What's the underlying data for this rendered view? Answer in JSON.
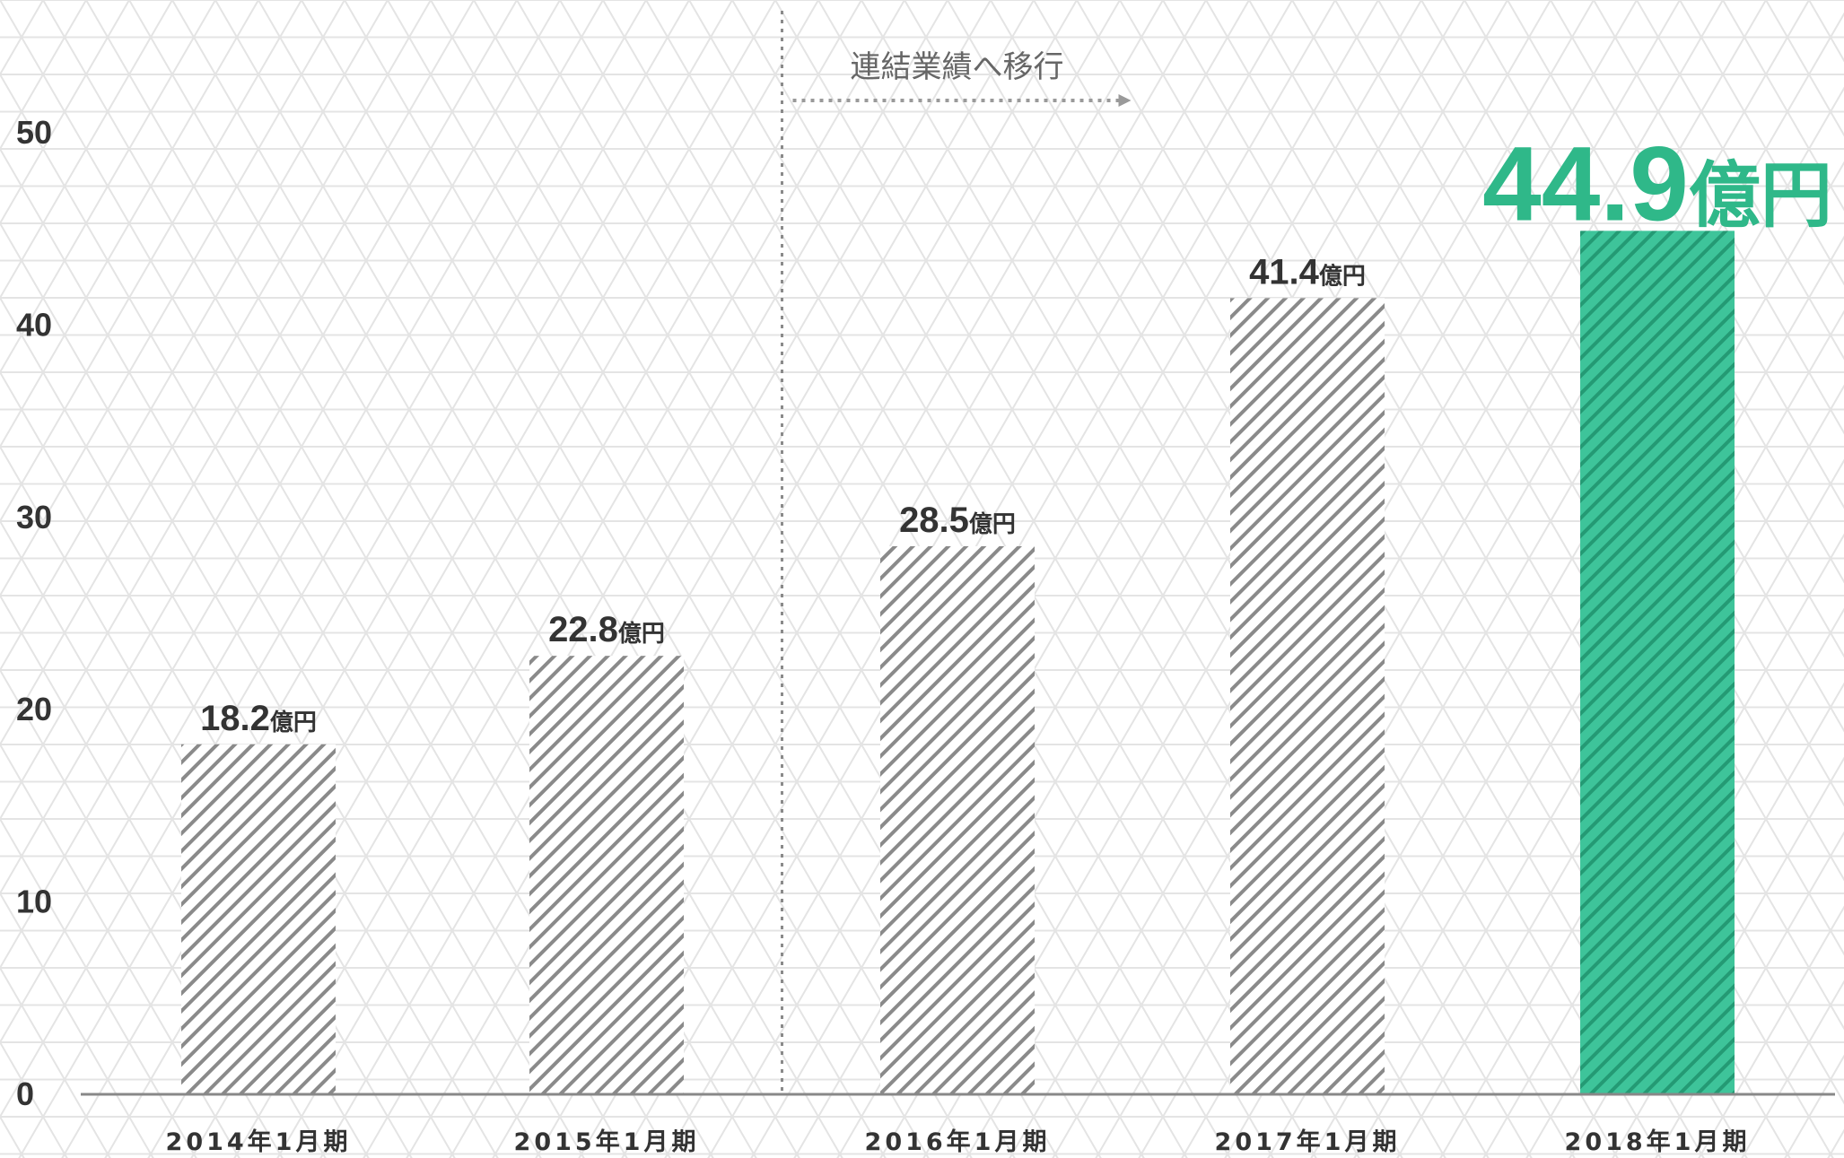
{
  "chart_data": {
    "type": "bar",
    "categories": [
      "2014年1月期",
      "2015年1月期",
      "2016年1月期",
      "2017年1月期",
      "2018年1月期"
    ],
    "values": [
      18.2,
      22.8,
      28.5,
      41.4,
      44.9
    ],
    "value_labels": [
      {
        "number": "18.2",
        "unit": "億円"
      },
      {
        "number": "22.8",
        "unit": "億円"
      },
      {
        "number": "28.5",
        "unit": "億円"
      },
      {
        "number": "41.4",
        "unit": "億円"
      },
      {
        "number": "44.9",
        "unit": "億円"
      }
    ],
    "highlight_index": 4,
    "yticks": [
      "0",
      "10",
      "20",
      "30",
      "40",
      "50"
    ],
    "ylim": [
      0,
      50
    ],
    "grid": false,
    "annotation": {
      "text": "連結業績へ移行",
      "divider_between": [
        1,
        2
      ]
    },
    "colors": {
      "normal_bar_stripe": "#8a8a8a",
      "highlight_bar": "#3ec49a",
      "highlight_bar_stripe": "#249a74",
      "highlight_label": "#2fb889",
      "label": "#333333",
      "axis": "#888888",
      "background_pattern": "#e6e6e6"
    }
  }
}
